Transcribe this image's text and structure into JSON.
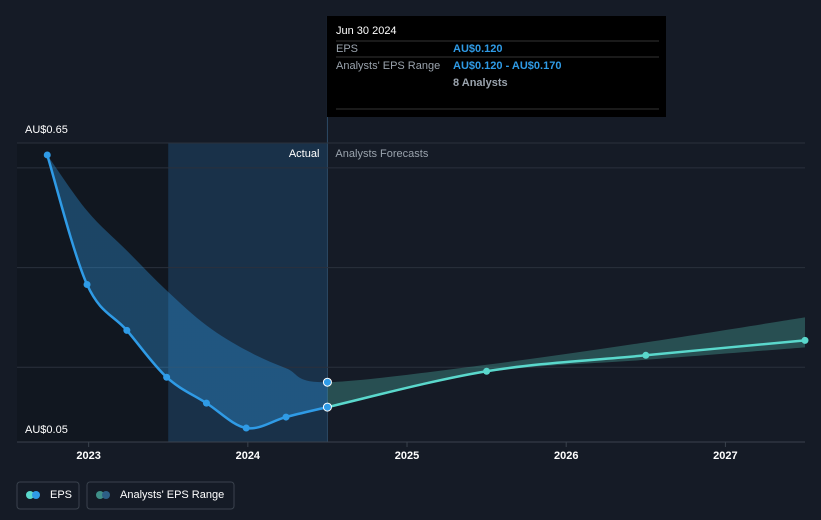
{
  "chart_data": {
    "type": "line",
    "labels": {
      "actual": "Actual",
      "forecast": "Analysts Forecasts"
    },
    "y_labels": {
      "min": "AU$0.05",
      "max": "AU$0.65"
    },
    "x": [
      2022.74,
      2022.99,
      2023.24,
      2023.49,
      2023.74,
      2023.99,
      2024.24,
      2024.5,
      2025.5,
      2026.5,
      2027.5
    ],
    "actual_until": 2024.5,
    "series": [
      {
        "name": "EPS",
        "color": "#2f9be6",
        "forecast_color": "#5ad8cc",
        "values": [
          0.626,
          0.366,
          0.274,
          0.18,
          0.128,
          0.078,
          0.1,
          0.12,
          0.192,
          0.224,
          0.254
        ]
      },
      {
        "name": "Analysts' EPS Range",
        "color": "#2f9be6",
        "forecast_color": "#3f8f88",
        "high": [
          0.626,
          0.514,
          0.434,
          0.354,
          0.284,
          0.234,
          0.198,
          0.17,
          0.205,
          0.25,
          0.3
        ],
        "low": [
          0.626,
          0.366,
          0.274,
          0.18,
          0.128,
          0.078,
          0.1,
          0.12,
          0.19,
          0.215,
          0.24
        ]
      }
    ],
    "xlim": [
      2022.55,
      2027.5
    ],
    "xticks": [
      2023,
      2024,
      2025,
      2026,
      2027
    ],
    "ylim": [
      0.05,
      0.65
    ],
    "yticks": [
      0.2,
      0.4,
      0.6,
      0.65
    ],
    "grid": true,
    "tooltip": {
      "date": "Jun 30 2024",
      "rows": [
        [
          "EPS",
          "AU$0.120"
        ],
        [
          "Analysts' EPS Range",
          "AU$0.120 - AU$0.170"
        ],
        [
          "",
          "8 Analysts"
        ]
      ]
    }
  }
}
